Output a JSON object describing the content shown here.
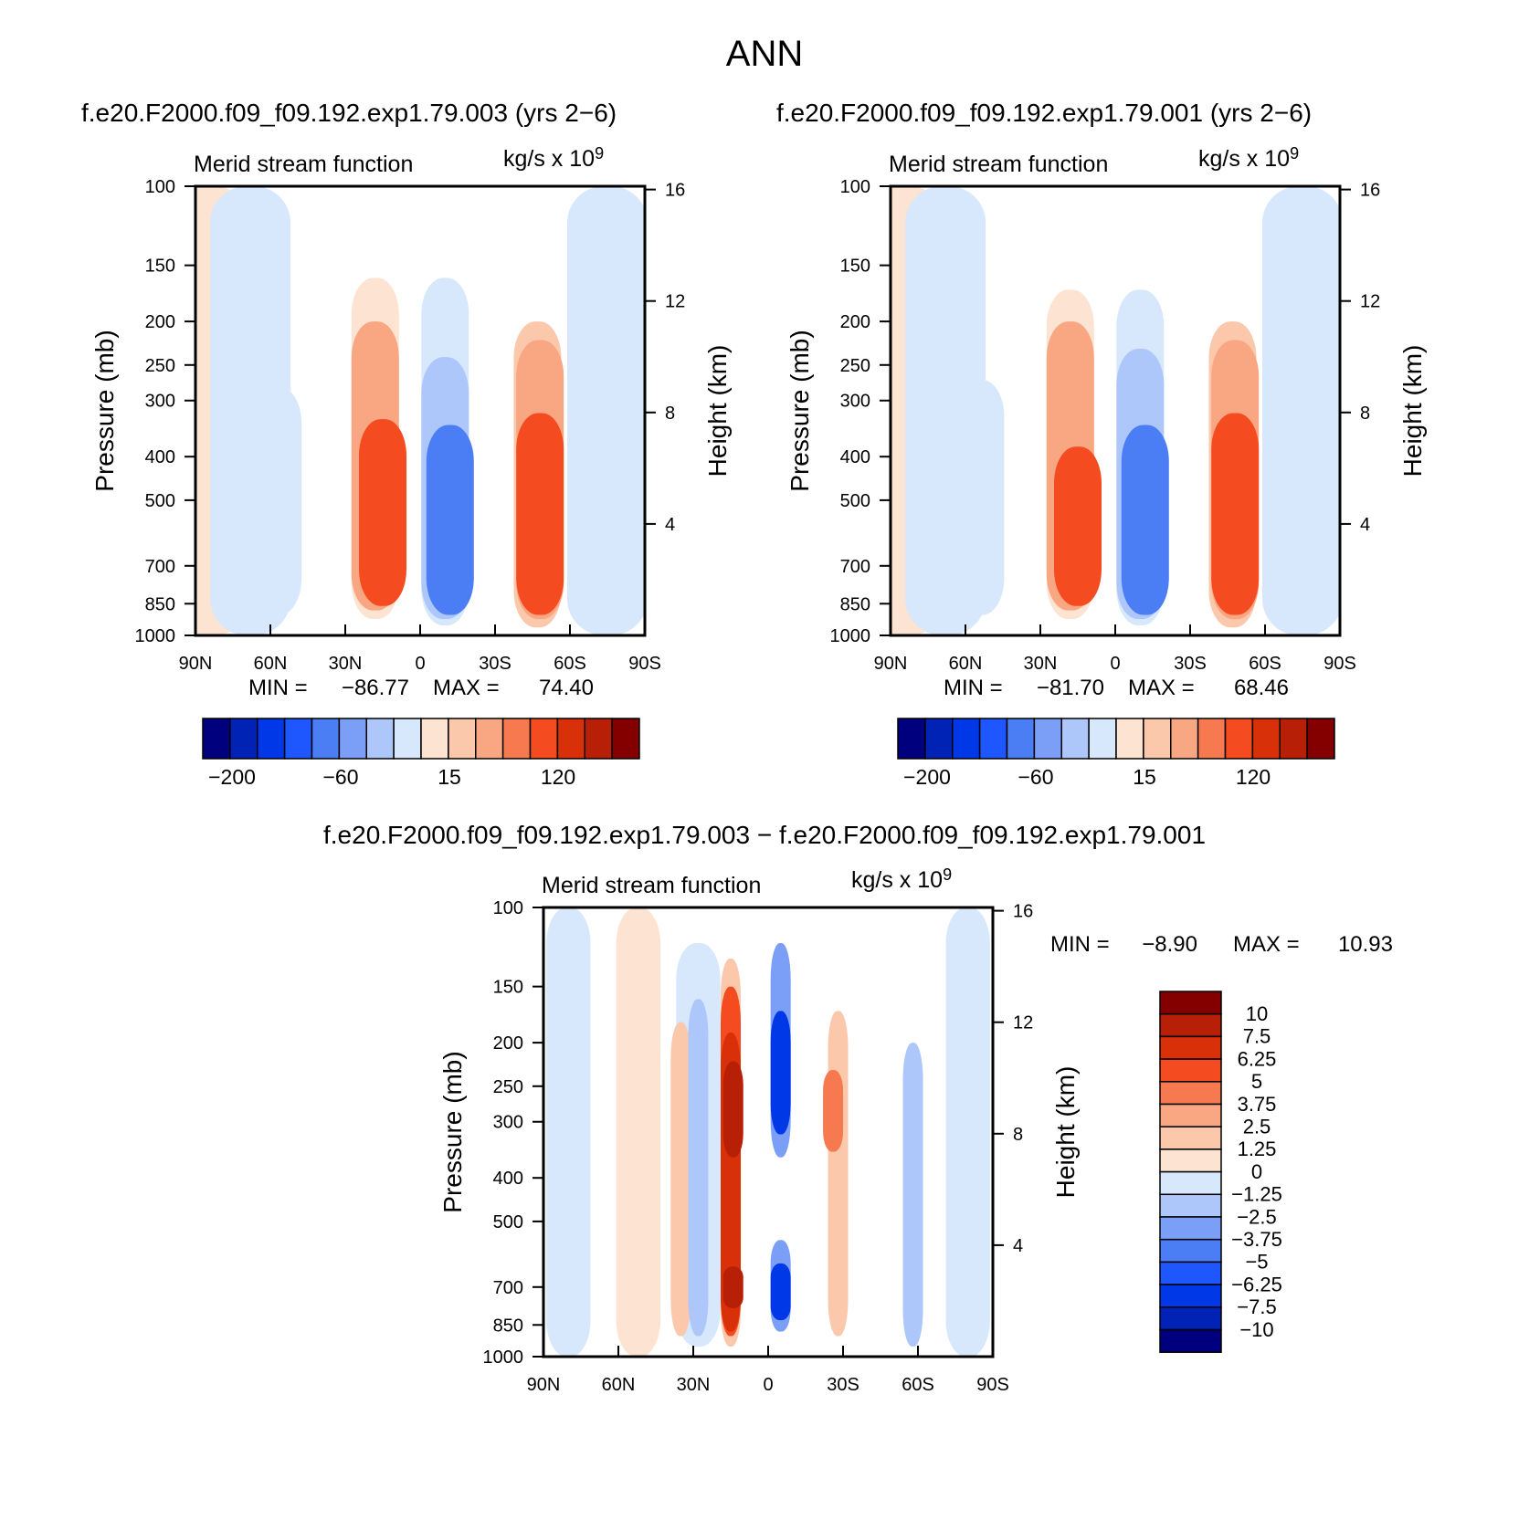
{
  "page_title": "ANN",
  "chart_data": [
    {
      "type": "contour",
      "title": "f.e20.F2000.f09_f09.192.exp1.79.003 (yrs 2−6)",
      "left_string": "Merid stream function",
      "units": "kg/s x 10",
      "units_exp": "9",
      "ylabel": "Pressure (mb)",
      "ylabel_right": "Height (km)",
      "x_ticks": [
        "90N",
        "60N",
        "30N",
        "0",
        "30S",
        "60S",
        "90S"
      ],
      "y_ticks": [
        "100",
        "150",
        "200",
        "250",
        "300",
        "400",
        "500",
        "700",
        "850",
        "1000"
      ],
      "y_ticks_right": [
        "16",
        "12",
        "8",
        "4"
      ],
      "min_label": "MIN =",
      "min_value": "−86.77",
      "max_label": "MAX =",
      "max_value": "74.40",
      "min": -86.77,
      "max": 74.4,
      "colorbar_labels": [
        "−200",
        "−60",
        "15",
        "120"
      ],
      "cells": [
        {
          "lat": 84,
          "p_top": 100,
          "p_bot": 1000,
          "v": 5
        },
        {
          "lat": 68,
          "p_top": 100,
          "p_bot": 1000,
          "v": -5
        },
        {
          "lat": 57,
          "p_top": 280,
          "p_bot": 900,
          "v": -20
        },
        {
          "lat": 18,
          "p_top": 160,
          "p_bot": 920,
          "v": 10
        },
        {
          "lat": 18,
          "p_top": 200,
          "p_bot": 880,
          "v": 40
        },
        {
          "lat": 15,
          "p_top": 330,
          "p_bot": 860,
          "v": 70
        },
        {
          "lat": -10,
          "p_top": 160,
          "p_bot": 950,
          "v": -20
        },
        {
          "lat": -10,
          "p_top": 240,
          "p_bot": 920,
          "v": -40
        },
        {
          "lat": -12,
          "p_top": 340,
          "p_bot": 900,
          "v": -80
        },
        {
          "lat": -47,
          "p_top": 200,
          "p_bot": 960,
          "v": 15
        },
        {
          "lat": -48,
          "p_top": 220,
          "p_bot": 920,
          "v": 30
        },
        {
          "lat": -48,
          "p_top": 320,
          "p_bot": 900,
          "v": 60
        },
        {
          "lat": -75,
          "p_top": 100,
          "p_bot": 1000,
          "v": -5
        }
      ]
    },
    {
      "type": "contour",
      "title": "f.e20.F2000.f09_f09.192.exp1.79.001 (yrs 2−6)",
      "left_string": "Merid stream function",
      "units": "kg/s x 10",
      "units_exp": "9",
      "ylabel": "Pressure (mb)",
      "ylabel_right": "Height (km)",
      "x_ticks": [
        "90N",
        "60N",
        "30N",
        "0",
        "30S",
        "60S",
        "90S"
      ],
      "y_ticks": [
        "100",
        "150",
        "200",
        "250",
        "300",
        "400",
        "500",
        "700",
        "850",
        "1000"
      ],
      "y_ticks_right": [
        "16",
        "12",
        "8",
        "4"
      ],
      "min_label": "MIN =",
      "min_value": "−81.70",
      "max_label": "MAX =",
      "max_value": "68.46",
      "min": -81.7,
      "max": 68.46,
      "colorbar_labels": [
        "−200",
        "−60",
        "15",
        "120"
      ],
      "cells": [
        {
          "lat": 84,
          "p_top": 100,
          "p_bot": 1000,
          "v": 5
        },
        {
          "lat": 68,
          "p_top": 100,
          "p_bot": 1000,
          "v": -5
        },
        {
          "lat": 54,
          "p_top": 270,
          "p_bot": 900,
          "v": -20
        },
        {
          "lat": 18,
          "p_top": 170,
          "p_bot": 920,
          "v": 10
        },
        {
          "lat": 18,
          "p_top": 200,
          "p_bot": 880,
          "v": 40
        },
        {
          "lat": 15,
          "p_top": 380,
          "p_bot": 860,
          "v": 60
        },
        {
          "lat": -10,
          "p_top": 170,
          "p_bot": 950,
          "v": -20
        },
        {
          "lat": -10,
          "p_top": 230,
          "p_bot": 920,
          "v": -40
        },
        {
          "lat": -12,
          "p_top": 340,
          "p_bot": 900,
          "v": -80
        },
        {
          "lat": -47,
          "p_top": 200,
          "p_bot": 960,
          "v": 15
        },
        {
          "lat": -48,
          "p_top": 220,
          "p_bot": 920,
          "v": 30
        },
        {
          "lat": -48,
          "p_top": 320,
          "p_bot": 900,
          "v": 60
        },
        {
          "lat": -75,
          "p_top": 100,
          "p_bot": 1000,
          "v": -5
        }
      ]
    },
    {
      "type": "contour",
      "title": "f.e20.F2000.f09_f09.192.exp1.79.003 − f.e20.F2000.f09_f09.192.exp1.79.001",
      "left_string": "Merid stream function",
      "units": "kg/s x 10",
      "units_exp": "9",
      "ylabel": "Pressure (mb)",
      "ylabel_right": "Height (km)",
      "x_ticks": [
        "90N",
        "60N",
        "30N",
        "0",
        "30S",
        "60S",
        "90S"
      ],
      "y_ticks": [
        "100",
        "150",
        "200",
        "250",
        "300",
        "400",
        "500",
        "700",
        "850",
        "1000"
      ],
      "y_ticks_right": [
        "16",
        "12",
        "8",
        "4"
      ],
      "min_label": "MIN =",
      "min_value": "−8.90",
      "max_label": "MAX =",
      "max_value": "10.93",
      "min": -8.9,
      "max": 10.93,
      "colorbar_labels": [
        "10",
        "7.5",
        "6.25",
        "5",
        "3.75",
        "2.5",
        "1.25",
        "0",
        "−1.25",
        "−2.5",
        "−3.75",
        "−5",
        "−6.25",
        "−7.5",
        "−10"
      ],
      "cells": [
        {
          "lat": 80,
          "p_top": 100,
          "p_bot": 1000,
          "v": -0.5
        },
        {
          "lat": 52,
          "p_top": 100,
          "p_bot": 1000,
          "v": 0.5
        },
        {
          "lat": 28,
          "p_top": 120,
          "p_bot": 950,
          "v": -0.6
        },
        {
          "lat": 35,
          "p_top": 180,
          "p_bot": 900,
          "v": 1.5
        },
        {
          "lat": 28,
          "p_top": 160,
          "p_bot": 900,
          "v": -2
        },
        {
          "lat": 15,
          "p_top": 130,
          "p_bot": 950,
          "v": 2
        },
        {
          "lat": 15,
          "p_top": 150,
          "p_bot": 900,
          "v": 5
        },
        {
          "lat": 15,
          "p_top": 190,
          "p_bot": 880,
          "v": 6.5
        },
        {
          "lat": 14,
          "p_top": 220,
          "p_bot": 360,
          "v": 9
        },
        {
          "lat": 14,
          "p_top": 630,
          "p_bot": 780,
          "v": 8
        },
        {
          "lat": -5,
          "p_top": 120,
          "p_bot": 360,
          "v": -3
        },
        {
          "lat": -5,
          "p_top": 170,
          "p_bot": 320,
          "v": -6.5
        },
        {
          "lat": -5,
          "p_top": 550,
          "p_bot": 880,
          "v": -3
        },
        {
          "lat": -5,
          "p_top": 620,
          "p_bot": 830,
          "v": -7
        },
        {
          "lat": -28,
          "p_top": 170,
          "p_bot": 900,
          "v": 2
        },
        {
          "lat": -26,
          "p_top": 230,
          "p_bot": 350,
          "v": 4
        },
        {
          "lat": -58,
          "p_top": 200,
          "p_bot": 950,
          "v": -2
        },
        {
          "lat": -80,
          "p_top": 100,
          "p_bot": 1000,
          "v": -0.5
        }
      ]
    }
  ],
  "colors": {
    "panel_scale": [
      "#00007f",
      "#0023b5",
      "#0038e8",
      "#1f57ff",
      "#4b7df5",
      "#7b9ef7",
      "#aec7fa",
      "#d7e8fc",
      "#fde3d1",
      "#fcc8ac",
      "#f9a682",
      "#f6794f",
      "#f44b20",
      "#d83009",
      "#b81f07",
      "#840000"
    ],
    "diff_scale": [
      "#840000",
      "#b81f07",
      "#d83009",
      "#f44b20",
      "#f6794f",
      "#f9a682",
      "#fcc8ac",
      "#fde3d1",
      "#d7e8fc",
      "#aec7fa",
      "#7b9ef7",
      "#4b7df5",
      "#1f57ff",
      "#0038e8",
      "#0023b5",
      "#00007f"
    ]
  }
}
